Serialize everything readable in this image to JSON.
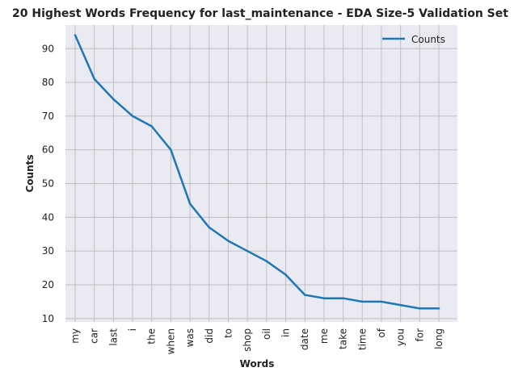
{
  "chart_data": {
    "type": "line",
    "title": "20 Highest Words Frequency for last_maintenance - EDA Size-5 Validation Set",
    "xlabel": "Words",
    "ylabel": "Counts",
    "categories": [
      "my",
      "car",
      "last",
      "i",
      "the",
      "when",
      "was",
      "did",
      "to",
      "shop",
      "oil",
      "in",
      "date",
      "me",
      "take",
      "time",
      "of",
      "you",
      "for",
      "long"
    ],
    "series": [
      {
        "name": "Counts",
        "values": [
          94,
          81,
          75,
          70,
          67,
          60,
          44,
          37,
          33,
          30,
          27,
          23,
          17,
          16,
          16,
          15,
          15,
          14,
          13,
          13
        ],
        "color": "#1f77b4"
      }
    ],
    "ylim": [
      9,
      97
    ],
    "yticks": [
      10,
      20,
      30,
      40,
      50,
      60,
      70,
      80,
      90
    ],
    "grid": true,
    "legend_position": "top-right",
    "colors": {
      "plot_background": "#eaeaf2",
      "grid": "#c0c0c0",
      "line": "#1f77b4"
    }
  }
}
